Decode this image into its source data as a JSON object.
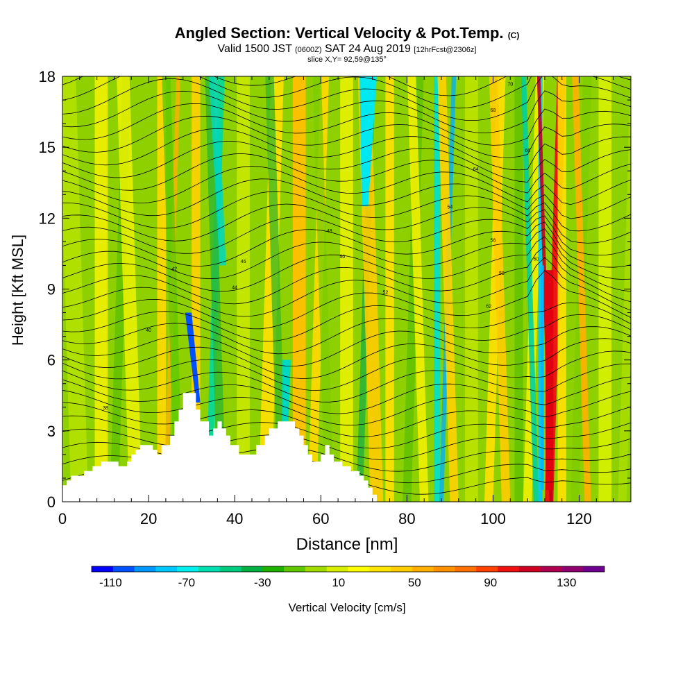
{
  "title": {
    "main": "Angled Section: Vertical Velocity & Pot.Temp.",
    "main_suffix": "(C)",
    "valid_prefix": "Valid 1500 JST",
    "valid_z": "(0600Z)",
    "valid_date": "SAT 24 Aug 2019",
    "fcst": "[12hrFcst@2306z]",
    "slice": "slice X,Y= 92,59@135°"
  },
  "chart_data": {
    "type": "heatmap",
    "xlabel": "Distance [nm]",
    "ylabel": "Height [Kft MSL]",
    "xlim": [
      0,
      132
    ],
    "ylim": [
      0,
      18
    ],
    "xticks": [
      0,
      20,
      40,
      60,
      80,
      100,
      120
    ],
    "yticks": [
      0,
      3,
      6,
      9,
      12,
      15,
      18
    ],
    "colorbar": {
      "label": "Vertical Velocity [cm/s]",
      "tick_labels": [
        -110,
        -70,
        -30,
        10,
        50,
        90,
        130
      ],
      "colors": [
        "#0000ff",
        "#0050ff",
        "#0096ff",
        "#00c8ff",
        "#00f0f0",
        "#00e0b0",
        "#00cc80",
        "#00b040",
        "#20b000",
        "#60c800",
        "#a0dc00",
        "#d8f000",
        "#ffff00",
        "#ffe400",
        "#ffcc00",
        "#ffb000",
        "#ff9000",
        "#ff7000",
        "#ff4000",
        "#f01010",
        "#d00020",
        "#b00050",
        "#900070",
        "#700090"
      ]
    },
    "terrain": [
      [
        0,
        0.7
      ],
      [
        1,
        0.7
      ],
      [
        1,
        0.9
      ],
      [
        2,
        0.9
      ],
      [
        2,
        1.1
      ],
      [
        5,
        1.1
      ],
      [
        5,
        1.3
      ],
      [
        7,
        1.3
      ],
      [
        7,
        1.5
      ],
      [
        9,
        1.5
      ],
      [
        9,
        1.7
      ],
      [
        13,
        1.7
      ],
      [
        13,
        1.5
      ],
      [
        15,
        1.5
      ],
      [
        15,
        1.7
      ],
      [
        16,
        1.7
      ],
      [
        16,
        2.0
      ],
      [
        17,
        2.0
      ],
      [
        17,
        2.2
      ],
      [
        18,
        2.2
      ],
      [
        18,
        2.4
      ],
      [
        21,
        2.4
      ],
      [
        21,
        2.2
      ],
      [
        22,
        2.2
      ],
      [
        22,
        2.0
      ],
      [
        23,
        2.0
      ],
      [
        23,
        2.4
      ],
      [
        25,
        2.4
      ],
      [
        25,
        2.8
      ],
      [
        26,
        2.8
      ],
      [
        26,
        3.4
      ],
      [
        27,
        3.4
      ],
      [
        27,
        3.9
      ],
      [
        28,
        3.9
      ],
      [
        28,
        4.6
      ],
      [
        31,
        4.6
      ],
      [
        31,
        3.9
      ],
      [
        32,
        3.9
      ],
      [
        32,
        3.4
      ],
      [
        34,
        3.4
      ],
      [
        34,
        2.8
      ],
      [
        35,
        2.8
      ],
      [
        35,
        3.1
      ],
      [
        36,
        3.1
      ],
      [
        36,
        3.4
      ],
      [
        37,
        3.4
      ],
      [
        37,
        3.1
      ],
      [
        38,
        3.1
      ],
      [
        38,
        2.8
      ],
      [
        39,
        2.8
      ],
      [
        39,
        2.4
      ],
      [
        41,
        2.4
      ],
      [
        41,
        2.0
      ],
      [
        45,
        2.0
      ],
      [
        45,
        2.4
      ],
      [
        47,
        2.4
      ],
      [
        47,
        2.8
      ],
      [
        48,
        2.8
      ],
      [
        48,
        3.1
      ],
      [
        50,
        3.1
      ],
      [
        50,
        3.4
      ],
      [
        54,
        3.4
      ],
      [
        54,
        3.1
      ],
      [
        55,
        3.1
      ],
      [
        55,
        2.8
      ],
      [
        56,
        2.8
      ],
      [
        56,
        2.4
      ],
      [
        57,
        2.4
      ],
      [
        57,
        2.0
      ],
      [
        58,
        2.0
      ],
      [
        58,
        1.7
      ],
      [
        60,
        1.7
      ],
      [
        60,
        2.0
      ],
      [
        61,
        2.0
      ],
      [
        61,
        2.4
      ],
      [
        62,
        2.4
      ],
      [
        62,
        2.0
      ],
      [
        63,
        2.0
      ],
      [
        63,
        1.7
      ],
      [
        65,
        1.7
      ],
      [
        65,
        1.5
      ],
      [
        67,
        1.5
      ],
      [
        67,
        1.3
      ],
      [
        69,
        1.3
      ],
      [
        69,
        1.1
      ],
      [
        70,
        1.1
      ],
      [
        70,
        0.9
      ],
      [
        71,
        0.9
      ],
      [
        71,
        0.6
      ],
      [
        72,
        0.6
      ],
      [
        72,
        0.3
      ],
      [
        73,
        0.3
      ],
      [
        73,
        0
      ],
      [
        132,
        0
      ]
    ],
    "isentrope_labels": [
      "38",
      "40",
      "42",
      "44",
      "46",
      "48",
      "50",
      "52",
      "54",
      "56",
      "58",
      "60",
      "62",
      "64",
      "66",
      "68",
      "70"
    ]
  }
}
